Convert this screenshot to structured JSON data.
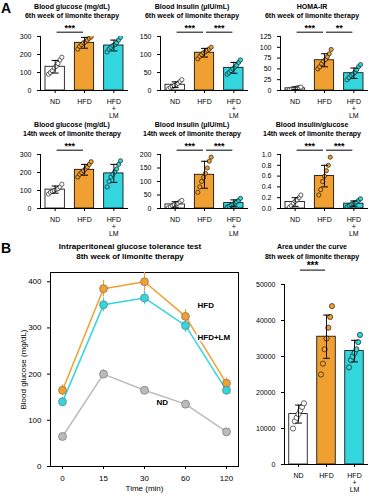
{
  "panel_labels": [
    "A",
    "B"
  ],
  "chart_data": [
    {
      "type": "bar",
      "title": "Blood glucose (mg/dL)",
      "subtitle": "6th week of limonite therapy",
      "categories": [
        "ND",
        "HFD",
        "HFD + LM"
      ],
      "values": [
        132,
        265,
        250
      ],
      "errors": [
        35,
        30,
        30
      ],
      "points": [
        [
          90,
          100,
          110,
          125,
          135,
          150,
          170,
          185
        ],
        [
          230,
          245,
          255,
          265,
          270,
          280,
          290,
          298
        ],
        [
          215,
          230,
          240,
          250,
          255,
          265,
          280,
          295
        ]
      ],
      "colors": [
        "#ffffff",
        "#f0a030",
        "#33d6dd"
      ],
      "ylim": [
        0,
        300
      ],
      "yticks": [
        0,
        100,
        200,
        300
      ],
      "annotations": [
        {
          "from": "ND",
          "to": "HFD",
          "label": "***"
        }
      ]
    },
    {
      "type": "bar",
      "title": "Blood Insulin (μIU/mL)",
      "subtitle": "6th week of limonite therapy",
      "categories": [
        "ND",
        "HFD",
        "HFD + LM"
      ],
      "values": [
        16,
        105,
        63
      ],
      "errors": [
        8,
        12,
        15
      ],
      "points": [
        [
          5,
          8,
          10,
          14,
          16,
          20,
          25,
          30
        ],
        [
          88,
          95,
          100,
          105,
          108,
          112,
          115,
          120
        ],
        [
          45,
          50,
          55,
          60,
          65,
          70,
          78,
          85
        ]
      ],
      "colors": [
        "#ffffff",
        "#f0a030",
        "#33d6dd"
      ],
      "ylim": [
        0,
        150
      ],
      "yticks": [
        0,
        50,
        100,
        150
      ],
      "annotations": [
        {
          "from": "ND",
          "to": "HFD",
          "label": "***"
        },
        {
          "from": "HFD",
          "to": "HFD + LM",
          "label": "***"
        }
      ]
    },
    {
      "type": "bar",
      "title": "HOMA-IR",
      "subtitle": "6th week of limonite therapy",
      "categories": [
        "ND",
        "HFD",
        "HFD + LM"
      ],
      "values": [
        5,
        70,
        40
      ],
      "errors": [
        3,
        15,
        12
      ],
      "points": [
        [
          2,
          3,
          4,
          5,
          6,
          7,
          8
        ],
        [
          50,
          55,
          62,
          68,
          72,
          78,
          85,
          95
        ],
        [
          25,
          30,
          35,
          38,
          42,
          48,
          55,
          60
        ]
      ],
      "colors": [
        "#ffffff",
        "#f0a030",
        "#33d6dd"
      ],
      "ylim": [
        0,
        125
      ],
      "yticks": [
        0,
        25,
        50,
        75,
        100,
        125
      ],
      "annotations": [
        {
          "from": "ND",
          "to": "HFD",
          "label": "***"
        },
        {
          "from": "HFD",
          "to": "HFD + LM",
          "label": "**"
        }
      ]
    },
    {
      "type": "bar",
      "title": "Blood glucose (mg/dL)",
      "subtitle": "14th week of limonite therapy",
      "categories": [
        "ND",
        "HFD",
        "HFD + LM"
      ],
      "values": [
        105,
        215,
        195
      ],
      "errors": [
        20,
        30,
        50
      ],
      "points": [
        [
          80,
          90,
          95,
          100,
          105,
          110,
          120,
          135
        ],
        [
          175,
          190,
          200,
          210,
          220,
          230,
          245,
          260
        ],
        [
          120,
          150,
          175,
          190,
          205,
          220,
          245,
          265
        ]
      ],
      "colors": [
        "#ffffff",
        "#f0a030",
        "#33d6dd"
      ],
      "ylim": [
        0,
        300
      ],
      "yticks": [
        0,
        100,
        200,
        300
      ],
      "annotations": [
        {
          "from": "ND",
          "to": "HFD",
          "label": "***"
        }
      ]
    },
    {
      "type": "bar",
      "title": "Blood insulin (μIU/mL)",
      "subtitle": "14th week of limonite therapy",
      "categories": [
        "ND",
        "HFD",
        "HFD + LM"
      ],
      "values": [
        15,
        125,
        20
      ],
      "errors": [
        10,
        50,
        12
      ],
      "points": [
        [
          3,
          6,
          10,
          14,
          17,
          20,
          25,
          30
        ],
        [
          60,
          80,
          100,
          115,
          130,
          150,
          175,
          190
        ],
        [
          5,
          8,
          12,
          16,
          20,
          25,
          30,
          38
        ]
      ],
      "colors": [
        "#ffffff",
        "#f0a030",
        "#33d6dd"
      ],
      "ylim": [
        0,
        200
      ],
      "yticks": [
        0,
        50,
        100,
        150,
        200
      ],
      "annotations": [
        {
          "from": "ND",
          "to": "HFD",
          "label": "***"
        },
        {
          "from": "HFD",
          "to": "HFD + LM",
          "label": "***"
        }
      ]
    },
    {
      "type": "bar",
      "title": "Blood insulin/glucose",
      "subtitle": "14th week of limonite therapy",
      "categories": [
        "ND",
        "HFD",
        "HFD + LM"
      ],
      "values": [
        0.12,
        0.6,
        0.09
      ],
      "errors": [
        0.08,
        0.2,
        0.05
      ],
      "points": [
        [
          0.02,
          0.05,
          0.1,
          0.13,
          0.16,
          0.2,
          0.25
        ],
        [
          0.25,
          0.35,
          0.5,
          0.6,
          0.7,
          0.8,
          0.95
        ],
        [
          0.03,
          0.05,
          0.07,
          0.09,
          0.1,
          0.12,
          0.15,
          0.18
        ]
      ],
      "colors": [
        "#ffffff",
        "#f0a030",
        "#33d6dd"
      ],
      "ylim": [
        0,
        1
      ],
      "yticks": [
        {
          "value": 0,
          "label": "0.0"
        },
        0.2,
        0.4,
        0.6,
        0.8,
        {
          "value": 1,
          "label": "1.0"
        }
      ],
      "annotations": [
        {
          "from": "ND",
          "to": "HFD",
          "label": "***"
        },
        {
          "from": "HFD",
          "to": "HFD + LM",
          "label": "***"
        }
      ]
    },
    {
      "type": "line",
      "title": "Intraperitoneal glucose tolerance test",
      "subtitle": "8th week of limonite therapy",
      "x_label": "Time (min)",
      "y_label": "Blood glucose (mg/dL)",
      "categories": [
        "0",
        "15",
        "30",
        "60",
        "120"
      ],
      "marker": "circle",
      "series": [
        {
          "name": "HFD",
          "color": "#f0a030",
          "values": [
            165,
            385,
            400,
            325,
            180
          ],
          "errors": [
            12,
            18,
            20,
            15,
            12
          ]
        },
        {
          "name": "HFD+LM",
          "color": "#33d6dd",
          "values": [
            140,
            350,
            365,
            305,
            165
          ],
          "errors": [
            10,
            15,
            15,
            15,
            10
          ]
        },
        {
          "name": "ND",
          "color": "#bbbbbb",
          "values": [
            65,
            200,
            165,
            135,
            75
          ],
          "errors": [
            5,
            10,
            8,
            8,
            5
          ]
        }
      ],
      "ylim": [
        0,
        420
      ],
      "yticks": [
        0,
        100,
        200,
        300,
        400
      ]
    },
    {
      "type": "bar",
      "title": "Area under the curve",
      "subtitle": "8th week of limonite therapy",
      "categories": [
        "ND",
        "HFD",
        "HFD + LM"
      ],
      "values": [
        14000,
        35500,
        31500
      ],
      "errors": [
        2500,
        6000,
        3000
      ],
      "points": [
        [
          10000,
          12000,
          13000,
          14000,
          15000,
          16000,
          17000
        ],
        [
          25000,
          28000,
          32000,
          35000,
          38000,
          41000,
          44000
        ],
        [
          27000,
          29000,
          30000,
          31000,
          32000,
          34000,
          36000
        ]
      ],
      "colors": [
        "#ffffff",
        "#f0a030",
        "#33d6dd"
      ],
      "ylim": [
        0,
        50000
      ],
      "yticks": [
        0,
        10000,
        20000,
        30000,
        40000,
        50000
      ],
      "annotations": [
        {
          "from": "ND",
          "to": "HFD",
          "label": "***"
        }
      ]
    }
  ]
}
